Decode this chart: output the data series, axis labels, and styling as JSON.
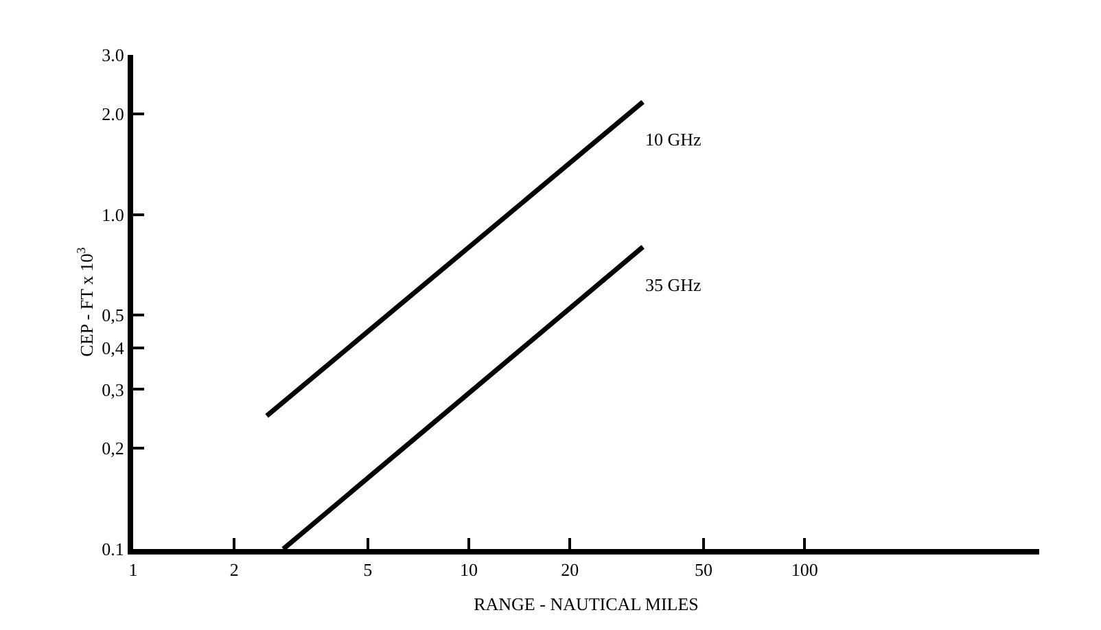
{
  "chart_data": {
    "type": "line",
    "xlabel": "RANGE - NAUTICAL MILES",
    "ylabel": "CEP - FT x 10$^{3}$",
    "log": "xy",
    "legend": false,
    "marker": "none",
    "line_style": "solid",
    "xlim": [
      1,
      500
    ],
    "xticks": [
      1,
      2,
      5,
      10,
      20,
      50,
      100
    ],
    "ylim": [
      0.1,
      3.0
    ],
    "yticks": [
      {
        "value": 0.1,
        "label": "0.1"
      },
      {
        "value": 0.2,
        "label": "0,2"
      },
      {
        "value": 0.3,
        "label": "0,3"
      },
      {
        "value": 0.4,
        "label": "0,4"
      },
      {
        "value": 0.5,
        "label": "0,5"
      },
      {
        "value": 1.0,
        "label": "1.0"
      },
      {
        "value": 2.0,
        "label": "2.0"
      },
      {
        "value": 3.0,
        "label": "3.0"
      }
    ],
    "series": [
      {
        "name": "10 GHz",
        "color": "#000000",
        "x": [
          2.5,
          33
        ],
        "values": [
          0.25,
          2.17
        ]
      },
      {
        "name": "35 GHz",
        "color": "#000000",
        "x": [
          2.8,
          33
        ],
        "values": [
          0.1,
          0.8
        ]
      }
    ]
  }
}
